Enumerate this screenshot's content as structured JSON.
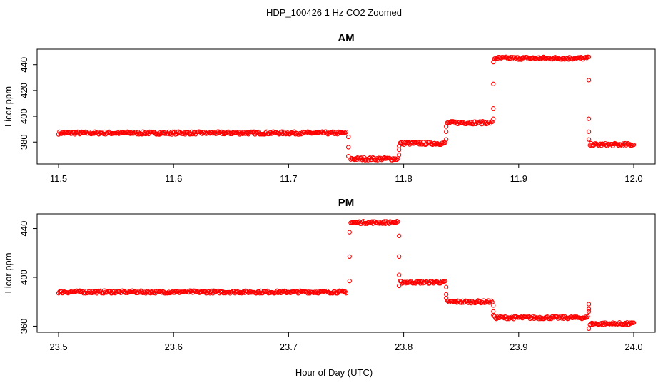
{
  "figure": {
    "suptitle": "HDP_100426  1 Hz CO2 Zoomed",
    "xlabel": "Hour of Day (UTC)",
    "point_color": "#ff0000"
  },
  "chart_data": [
    {
      "type": "scatter",
      "title": "AM",
      "xlabel": "",
      "ylabel": "Licor ppm",
      "xlim": [
        11.5,
        12.0
      ],
      "ylim": [
        363,
        452
      ],
      "x_ticks": [
        "11.5",
        "11.6",
        "11.7",
        "11.8",
        "11.9",
        "12.0"
      ],
      "y_ticks": [
        "380",
        "400",
        "420",
        "440"
      ],
      "marker": "open-circle",
      "grid": false,
      "series": [
        {
          "segments": [
            {
              "x": [
                11.5,
                11.75
              ],
              "y": 387
            },
            {
              "x": [
                11.754,
                11.795
              ],
              "y": 367
            },
            {
              "x": [
                11.797,
                11.836
              ],
              "y": 379
            },
            {
              "x": [
                11.838,
                11.877
              ],
              "y": 395
            },
            {
              "x": [
                11.879,
                11.96
              ],
              "y": 445
            },
            {
              "x": [
                11.962,
                12.0
              ],
              "y": 378
            }
          ],
          "transitions": [
            {
              "x": 11.752,
              "y": [
                384,
                369,
                376
              ]
            },
            {
              "x": 11.796,
              "y": [
                370,
                374,
                377
              ]
            },
            {
              "x": 11.837,
              "y": [
                382,
                388,
                392
              ]
            },
            {
              "x": 11.878,
              "y": [
                398,
                406,
                425,
                442
              ]
            },
            {
              "x": 11.961,
              "y": [
                446,
                428,
                398,
                388,
                382
              ]
            }
          ]
        }
      ]
    },
    {
      "type": "scatter",
      "title": "PM",
      "xlabel": "Hour of Day (UTC)",
      "ylabel": "Licor ppm",
      "xlim": [
        23.5,
        24.0
      ],
      "ylim": [
        355,
        452
      ],
      "x_ticks": [
        "23.5",
        "23.6",
        "23.7",
        "23.8",
        "23.9",
        "24.0"
      ],
      "y_ticks": [
        "360",
        "400",
        "440"
      ],
      "marker": "open-circle",
      "grid": false,
      "series": [
        {
          "segments": [
            {
              "x": [
                23.5,
                23.75
              ],
              "y": 388
            },
            {
              "x": [
                23.754,
                23.795
              ],
              "y": 445
            },
            {
              "x": [
                23.797,
                23.836
              ],
              "y": 396
            },
            {
              "x": [
                23.838,
                23.877
              ],
              "y": 380
            },
            {
              "x": [
                23.879,
                23.96
              ],
              "y": 367
            },
            {
              "x": [
                23.962,
                24.0
              ],
              "y": 362
            }
          ],
          "transitions": [
            {
              "x": 23.753,
              "y": [
                397,
                417,
                437
              ]
            },
            {
              "x": 23.796,
              "y": [
                434,
                417,
                402,
                393
              ]
            },
            {
              "x": 23.837,
              "y": [
                392,
                386,
                383
              ]
            },
            {
              "x": 23.878,
              "y": [
                377,
                372,
                369
              ]
            },
            {
              "x": 23.961,
              "y": [
                358,
                374,
                378,
                372
              ]
            }
          ]
        }
      ]
    }
  ]
}
